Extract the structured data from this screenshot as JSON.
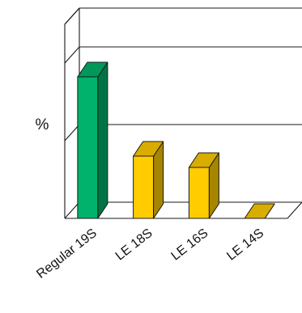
{
  "chart_data": {
    "type": "bar",
    "title": "",
    "xlabel": "",
    "ylabel": "%",
    "categories": [
      "Regular 19S",
      "LE 18S",
      "LE 16S",
      "LE 14S"
    ],
    "values": [
      100,
      44,
      36,
      0
    ],
    "ylim": [
      0,
      100
    ],
    "grid": true,
    "colors": {
      "Regular 19S": "#00b26b",
      "LE 18S": "#ffcc00",
      "LE 16S": "#ffcc00",
      "LE 14S": "#ffcc00"
    },
    "grid_levels": [
      0,
      40,
      80,
      100
    ]
  }
}
